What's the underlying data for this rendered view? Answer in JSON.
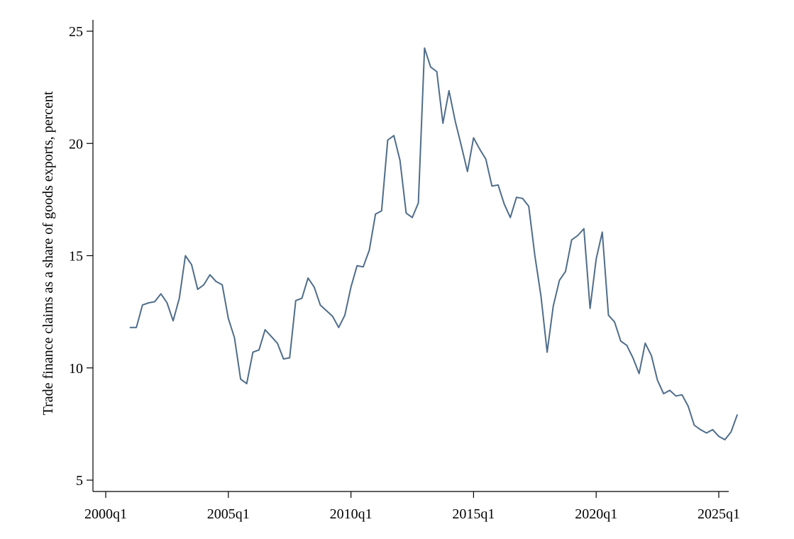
{
  "chart_data": {
    "type": "line",
    "ylabel": "Trade finance claims as a share of goods exports, percent",
    "xlabel": "",
    "ylim": [
      5,
      25
    ],
    "xlim": [
      "2000q1",
      "2025q4"
    ],
    "y_ticks": [
      "5",
      "10",
      "15",
      "20",
      "25"
    ],
    "x_ticks": [
      "2000q1",
      "2005q1",
      "2010q1",
      "2015q1",
      "2020q1",
      "2025q1"
    ],
    "grid": false,
    "legend": "none",
    "colors": {
      "line": "#4f6d8a"
    },
    "series": [
      {
        "x": [
          "2001q1",
          "2001q2",
          "2001q3",
          "2001q4",
          "2002q1",
          "2002q2",
          "2002q3",
          "2002q4",
          "2003q1",
          "2003q2",
          "2003q3",
          "2003q4",
          "2004q1",
          "2004q2",
          "2004q3",
          "2004q4",
          "2005q1",
          "2005q2",
          "2005q3",
          "2005q4",
          "2006q1",
          "2006q2",
          "2006q3",
          "2006q4",
          "2007q1",
          "2007q2",
          "2007q3",
          "2007q4",
          "2008q1",
          "2008q2",
          "2008q3",
          "2008q4",
          "2009q1",
          "2009q2",
          "2009q3",
          "2009q4",
          "2010q1",
          "2010q2",
          "2010q3",
          "2010q4",
          "2011q1",
          "2011q2",
          "2011q3",
          "2011q4",
          "2012q1",
          "2012q2",
          "2012q3",
          "2012q4",
          "2013q1",
          "2013q2",
          "2013q3",
          "2013q4",
          "2014q1",
          "2014q2",
          "2014q3",
          "2014q4",
          "2015q1",
          "2015q2",
          "2015q3",
          "2015q4",
          "2016q1",
          "2016q2",
          "2016q3",
          "2016q4",
          "2017q1",
          "2017q2",
          "2017q3",
          "2017q4",
          "2018q1",
          "2018q2",
          "2018q3",
          "2018q4",
          "2019q1",
          "2019q2",
          "2019q3",
          "2019q4",
          "2020q1",
          "2020q2",
          "2020q3",
          "2020q4",
          "2021q1",
          "2021q2",
          "2021q3",
          "2021q4",
          "2022q1",
          "2022q2",
          "2022q3",
          "2022q4",
          "2023q1",
          "2023q2",
          "2023q3",
          "2023q4",
          "2024q1",
          "2024q2",
          "2024q3",
          "2024q4",
          "2025q1",
          "2025q2",
          "2025q3",
          "2025q4"
        ],
        "values": [
          11.8,
          11.8,
          12.8,
          12.9,
          12.95,
          13.3,
          12.9,
          12.1,
          13.1,
          15.0,
          14.6,
          13.5,
          13.7,
          14.15,
          13.85,
          13.7,
          12.2,
          11.35,
          9.5,
          9.3,
          10.7,
          10.8,
          11.7,
          11.4,
          11.1,
          10.4,
          10.45,
          13.0,
          13.1,
          14.0,
          13.6,
          12.8,
          12.55,
          12.3,
          11.8,
          12.35,
          13.6,
          14.55,
          14.5,
          15.25,
          16.85,
          17.0,
          20.15,
          20.35,
          19.25,
          16.9,
          16.7,
          17.35,
          24.25,
          23.4,
          23.2,
          20.9,
          22.35,
          21.0,
          19.9,
          18.75,
          20.25,
          19.75,
          19.3,
          18.1,
          18.15,
          17.3,
          16.7,
          17.6,
          17.55,
          17.2,
          15.0,
          13.2,
          10.7,
          12.75,
          13.9,
          14.3,
          15.7,
          15.9,
          16.2,
          12.65,
          14.85,
          16.05,
          12.35,
          12.05,
          11.2,
          11.0,
          10.45,
          9.75,
          11.1,
          10.55,
          9.45,
          8.85,
          9.0,
          8.75,
          8.8,
          8.3,
          7.45,
          7.25,
          7.1,
          7.25,
          6.95,
          6.8,
          7.15,
          7.9
        ]
      }
    ]
  }
}
